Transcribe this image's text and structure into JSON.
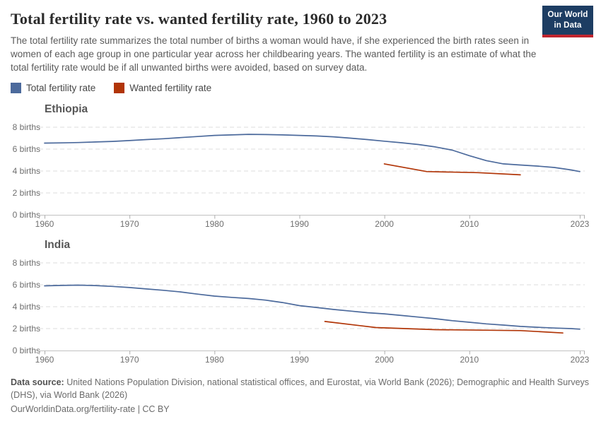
{
  "header": {
    "title": "Total fertility rate vs. wanted fertility rate, 1960 to 2023",
    "subtitle": "The total fertility rate summarizes the total number of births a woman would have, if she experienced the birth rates seen in women of each age group in one particular year across her childbearing years. The wanted fertility is an estimate of what the total fertility rate would be if all unwanted births were avoided, based on survey data.",
    "logo": {
      "line1": "Our World",
      "line2": "in Data"
    }
  },
  "colors": {
    "total_line": "#4c6a9c",
    "wanted_line": "#b13507",
    "logo_bg": "#1d3d63",
    "logo_accent": "#c0242e",
    "gridline": "#dcdcdc",
    "axis": "#c2c2c2",
    "tick": "#adadad",
    "tick_label": "#6e6e6e"
  },
  "legend": {
    "items": [
      {
        "label": "Total fertility rate",
        "color": "#4c6a9c"
      },
      {
        "label": "Wanted fertility rate",
        "color": "#b13507"
      }
    ]
  },
  "chart_data": [
    {
      "type": "line",
      "title": "Ethiopia",
      "xlabel": "",
      "ylabel": "births",
      "xlim": [
        1959,
        2024
      ],
      "ylim": [
        0,
        8
      ],
      "grid": "dashed-horizontal",
      "legend_position": "top-left-shared",
      "x_ticks": [
        {
          "value": 1960,
          "label": "1960"
        },
        {
          "value": 1970,
          "label": "1970"
        },
        {
          "value": 1980,
          "label": "1980"
        },
        {
          "value": 1990,
          "label": "1990"
        },
        {
          "value": 2000,
          "label": "2000"
        },
        {
          "value": 2010,
          "label": "2010"
        },
        {
          "value": 2023,
          "label": "2023"
        }
      ],
      "y_ticks": [
        {
          "value": 8,
          "label": "8 births"
        },
        {
          "value": 6,
          "label": "6 births"
        },
        {
          "value": 4,
          "label": "4 births"
        },
        {
          "value": 2,
          "label": "2 births"
        },
        {
          "value": 0,
          "label": "0 births"
        }
      ],
      "series": [
        {
          "name": "Total fertility rate",
          "color": "#4c6a9c",
          "points": [
            [
              1960,
              6.55
            ],
            [
              1962,
              6.57
            ],
            [
              1964,
              6.6
            ],
            [
              1966,
              6.65
            ],
            [
              1968,
              6.7
            ],
            [
              1970,
              6.78
            ],
            [
              1972,
              6.87
            ],
            [
              1974,
              6.95
            ],
            [
              1976,
              7.05
            ],
            [
              1978,
              7.15
            ],
            [
              1980,
              7.25
            ],
            [
              1982,
              7.3
            ],
            [
              1984,
              7.35
            ],
            [
              1986,
              7.33
            ],
            [
              1988,
              7.3
            ],
            [
              1990,
              7.25
            ],
            [
              1992,
              7.2
            ],
            [
              1994,
              7.12
            ],
            [
              1996,
              7.0
            ],
            [
              1998,
              6.87
            ],
            [
              2000,
              6.72
            ],
            [
              2002,
              6.58
            ],
            [
              2004,
              6.42
            ],
            [
              2006,
              6.2
            ],
            [
              2008,
              5.9
            ],
            [
              2010,
              5.4
            ],
            [
              2012,
              4.95
            ],
            [
              2014,
              4.65
            ],
            [
              2016,
              4.55
            ],
            [
              2018,
              4.45
            ],
            [
              2020,
              4.32
            ],
            [
              2022,
              4.1
            ],
            [
              2023,
              3.95
            ]
          ]
        },
        {
          "name": "Wanted fertility rate",
          "color": "#b13507",
          "points": [
            [
              2000,
              4.65
            ],
            [
              2005,
              3.95
            ],
            [
              2011,
              3.85
            ],
            [
              2016,
              3.65
            ]
          ]
        }
      ]
    },
    {
      "type": "line",
      "title": "India",
      "xlabel": "",
      "ylabel": "births",
      "xlim": [
        1959,
        2024
      ],
      "ylim": [
        0,
        8
      ],
      "grid": "dashed-horizontal",
      "legend_position": "top-left-shared",
      "x_ticks": [
        {
          "value": 1960,
          "label": "1960"
        },
        {
          "value": 1970,
          "label": "1970"
        },
        {
          "value": 1980,
          "label": "1980"
        },
        {
          "value": 1990,
          "label": "1990"
        },
        {
          "value": 2000,
          "label": "2000"
        },
        {
          "value": 2010,
          "label": "2010"
        },
        {
          "value": 2023,
          "label": "2023"
        }
      ],
      "y_ticks": [
        {
          "value": 8,
          "label": "8 births"
        },
        {
          "value": 6,
          "label": "6 births"
        },
        {
          "value": 4,
          "label": "4 births"
        },
        {
          "value": 2,
          "label": "2 births"
        },
        {
          "value": 0,
          "label": "0 births"
        }
      ],
      "series": [
        {
          "name": "Total fertility rate",
          "color": "#4c6a9c",
          "points": [
            [
              1960,
              5.9
            ],
            [
              1962,
              5.94
            ],
            [
              1964,
              5.97
            ],
            [
              1966,
              5.93
            ],
            [
              1968,
              5.85
            ],
            [
              1970,
              5.75
            ],
            [
              1972,
              5.62
            ],
            [
              1974,
              5.5
            ],
            [
              1976,
              5.35
            ],
            [
              1978,
              5.15
            ],
            [
              1980,
              4.97
            ],
            [
              1982,
              4.85
            ],
            [
              1984,
              4.75
            ],
            [
              1986,
              4.6
            ],
            [
              1988,
              4.38
            ],
            [
              1990,
              4.1
            ],
            [
              1992,
              3.93
            ],
            [
              1994,
              3.75
            ],
            [
              1996,
              3.6
            ],
            [
              1998,
              3.45
            ],
            [
              2000,
              3.35
            ],
            [
              2002,
              3.2
            ],
            [
              2004,
              3.05
            ],
            [
              2006,
              2.9
            ],
            [
              2008,
              2.72
            ],
            [
              2010,
              2.58
            ],
            [
              2012,
              2.43
            ],
            [
              2014,
              2.32
            ],
            [
              2016,
              2.2
            ],
            [
              2018,
              2.12
            ],
            [
              2020,
              2.05
            ],
            [
              2022,
              2.0
            ],
            [
              2023,
              1.95
            ]
          ]
        },
        {
          "name": "Wanted fertility rate",
          "color": "#b13507",
          "points": [
            [
              1993,
              2.65
            ],
            [
              1999,
              2.1
            ],
            [
              2006,
              1.9
            ],
            [
              2016,
              1.82
            ],
            [
              2021,
              1.6
            ]
          ]
        }
      ]
    }
  ],
  "footer": {
    "data_source_label": "Data source:",
    "data_source_text": " United Nations Population Division, national statistical offices, and Eurostat, via World Bank (2026); Demographic and Health Surveys (DHS), via World Bank (2026)",
    "citation": "OurWorldinData.org/fertility-rate | CC BY"
  }
}
